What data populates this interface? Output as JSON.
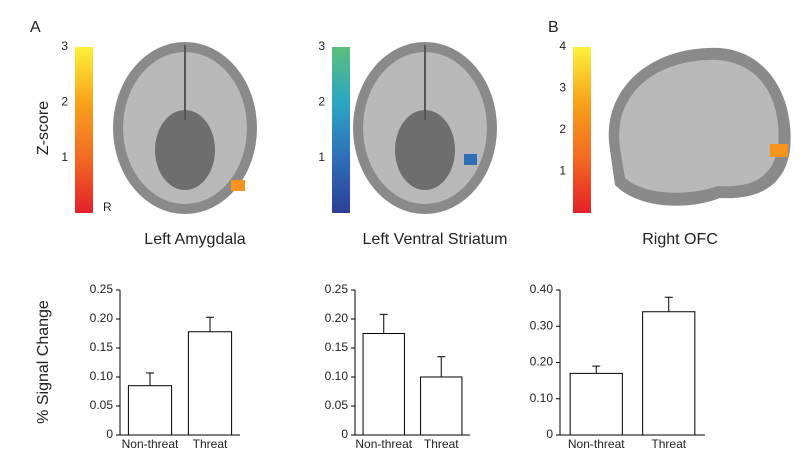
{
  "figure": {
    "panel_labels": [
      "A",
      "B"
    ],
    "z_label": "Z-score",
    "side_marker": "R"
  },
  "colorbars": [
    {
      "lim": [
        0,
        3
      ],
      "ticks": [
        1,
        2,
        3
      ],
      "colors": [
        "#e4202a",
        "#f26b22",
        "#f7a21b",
        "#fff23a"
      ]
    },
    {
      "lim": [
        0,
        3
      ],
      "ticks": [
        1,
        2,
        3
      ],
      "colors": [
        "#2b3f95",
        "#2f6fb7",
        "#2aa6c4",
        "#5cbf7a"
      ]
    },
    {
      "lim": [
        0,
        4
      ],
      "ticks": [
        1,
        2,
        3,
        4
      ],
      "colors": [
        "#e4202a",
        "#f26b22",
        "#f7a21b",
        "#fff23a"
      ]
    }
  ],
  "chart_data": [
    {
      "type": "bar",
      "title": "Left Amygdala",
      "ylabel": "% Signal Change",
      "categories": [
        "Non-threat",
        "Threat"
      ],
      "values": [
        0.085,
        0.178
      ],
      "errors": [
        0.022,
        0.025
      ],
      "ylim": [
        0,
        0.25
      ],
      "yticks": [
        0,
        0.05,
        {
          "value": 0.1,
          "label": "0.10"
        },
        0.15,
        {
          "value": 0.2,
          "label": "0.20"
        },
        0.25
      ]
    },
    {
      "type": "bar",
      "title": "Left Ventral Striatum",
      "categories": [
        "Non-threat",
        "Threat"
      ],
      "values": [
        0.175,
        0.1
      ],
      "errors": [
        0.033,
        0.035
      ],
      "ylim": [
        0,
        0.25
      ],
      "yticks": [
        0,
        0.05,
        {
          "value": 0.1,
          "label": "0.10"
        },
        0.15,
        {
          "value": 0.2,
          "label": "0.20"
        },
        0.25
      ]
    },
    {
      "type": "bar",
      "title": "Right OFC",
      "categories": [
        "Non-threat",
        "Threat"
      ],
      "values": [
        0.17,
        0.34
      ],
      "errors": [
        0.02,
        0.04
      ],
      "ylim": [
        0,
        0.4
      ],
      "yticks": [
        0,
        {
          "value": 0.1,
          "label": "0.10"
        },
        {
          "value": 0.2,
          "label": "0.20"
        },
        {
          "value": 0.3,
          "label": "0.30"
        },
        {
          "value": 0.4,
          "label": "0.40"
        }
      ]
    }
  ]
}
